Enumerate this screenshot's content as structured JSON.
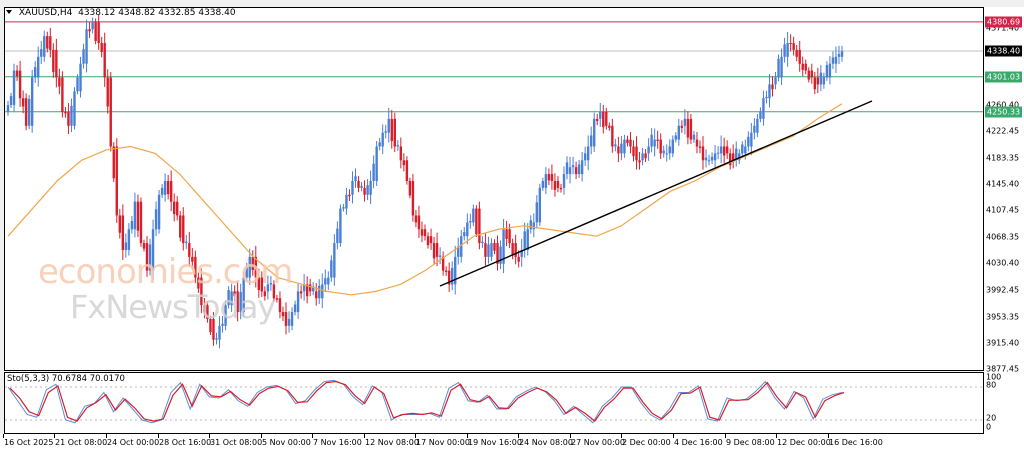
{
  "header": {
    "symbol_timeframe": "XAUUSD,H4",
    "ohlc": "4338.12 4348.82 4332.85 4338.40"
  },
  "watermark": {
    "line1": "economies.com",
    "line2": "FxNewsToday"
  },
  "price_axis": {
    "ticks": [
      "4371.40",
      "4260.40",
      "4222.45",
      "4183.35",
      "4145.40",
      "4107.45",
      "4068.35",
      "4030.40",
      "3992.45",
      "3953.35",
      "3915.40",
      "3877.45"
    ],
    "tags": [
      {
        "value": "4380.69",
        "color": "#d6224a"
      },
      {
        "value": "4338.40",
        "color": "#000000"
      },
      {
        "value": "4301.03",
        "color": "#3aa86b"
      },
      {
        "value": "4250.33",
        "color": "#3aa86b"
      }
    ]
  },
  "stochastic": {
    "title": "Sto(5,3,3) 70.6784 70.0170",
    "levels": [
      "100",
      "80",
      "20",
      "0"
    ],
    "main_color": "#5b8fd9",
    "signal_color": "#d81e2a"
  },
  "time_axis": {
    "labels": [
      "16 Oct 2025",
      "21 Oct 08:00",
      "24 Oct 00:00",
      "28 Oct 16:00",
      "31 Oct 08:00",
      "5 Nov 00:00",
      "7 Nov 16:00",
      "12 Nov 08:00",
      "17 Nov 00:00",
      "19 Nov 16:00",
      "24 Nov 08:00",
      "27 Nov 00:00",
      "2 Dec 00:00",
      "4 Dec 16:00",
      "9 Dec 08:00",
      "12 Dec 00:00",
      "16 Dec 16:00"
    ]
  },
  "chart_data": [
    {
      "type": "candlestick",
      "title": "XAUUSD,H4",
      "subtitle": "4338.12 4348.82 4332.85 4338.40",
      "xlabel": "",
      "ylabel": "",
      "ylim": [
        3877.45,
        4390
      ],
      "grid": false,
      "colors": {
        "bull": "#4a7fd6",
        "bear": "#d81e2a",
        "ma": "#f2a64a",
        "trendline": "#000000"
      },
      "horizontal_lines": [
        {
          "value": 4380.69,
          "color": "#d6224a"
        },
        {
          "value": 4338.4,
          "color": "#c0c0c0"
        },
        {
          "value": 4301.03,
          "color": "#3aa86b"
        },
        {
          "value": 4250.33,
          "color": "#3aa86b"
        }
      ],
      "trendline": {
        "from": {
          "x": "17 Nov 00:00",
          "y": 3998
        },
        "to": {
          "x": "17 Dec 08:00",
          "y": 4262
        }
      },
      "x_tick_labels": [
        "16 Oct 2025",
        "21 Oct 08:00",
        "24 Oct 00:00",
        "28 Oct 16:00",
        "31 Oct 08:00",
        "5 Nov 00:00",
        "7 Nov 16:00",
        "12 Nov 08:00",
        "17 Nov 00:00",
        "19 Nov 16:00",
        "24 Nov 08:00",
        "27 Nov 00:00",
        "2 Dec 00:00",
        "4 Dec 16:00",
        "9 Dec 08:00",
        "12 Dec 00:00",
        "16 Dec 16:00"
      ],
      "y_tick_labels": [
        "4371.40",
        "4260.40",
        "4222.45",
        "4183.35",
        "4145.40",
        "4107.45",
        "4068.35",
        "4030.40",
        "3992.45",
        "3953.35",
        "3915.40",
        "3877.45"
      ],
      "close_path": [
        4260,
        4310,
        4270,
        4230,
        4300,
        4330,
        4360,
        4340,
        4300,
        4250,
        4230,
        4280,
        4320,
        4370,
        4380,
        4350,
        4300,
        4200,
        4100,
        4050,
        4080,
        4120,
        4060,
        4020,
        4080,
        4130,
        4150,
        4120,
        4100,
        4060,
        4040,
        4010,
        3970,
        3950,
        3920,
        3940,
        3970,
        3990,
        3960,
        4010,
        4040,
        4010,
        3990,
        4000,
        3980,
        3960,
        3940,
        3960,
        3990,
        4000,
        3990,
        3980,
        4000,
        4010,
        4060,
        4110,
        4130,
        4150,
        4140,
        4130,
        4150,
        4200,
        4220,
        4240,
        4200,
        4180,
        4150,
        4100,
        4080,
        4070,
        4060,
        4040,
        4020,
        4000,
        4040,
        4070,
        4090,
        4110,
        4060,
        4040,
        4060,
        4030,
        4080,
        4060,
        4040,
        4050,
        4080,
        4090,
        4140,
        4160,
        4150,
        4140,
        4160,
        4170,
        4160,
        4180,
        4200,
        4240,
        4250,
        4230,
        4200,
        4190,
        4210,
        4200,
        4180,
        4190,
        4200,
        4210,
        4190,
        4190,
        4210,
        4230,
        4240,
        4210,
        4200,
        4180,
        4180,
        4190,
        4200,
        4190,
        4180,
        4190,
        4200,
        4220,
        4240,
        4270,
        4290,
        4300,
        4330,
        4350,
        4340,
        4320,
        4310,
        4300,
        4290,
        4300,
        4320,
        4330,
        4338
      ],
      "ma_path": [
        4070,
        4110,
        4150,
        4180,
        4195,
        4200,
        4190,
        4160,
        4120,
        4080,
        4040,
        4010,
        4000,
        3990,
        3985,
        3990,
        4000,
        4020,
        4045,
        4070,
        4080,
        4085,
        4080,
        4075,
        4070,
        4085,
        4110,
        4135,
        4150,
        4170,
        4185,
        4200,
        4215,
        4240,
        4262
      ],
      "stochastic_main": [
        80,
        55,
        30,
        25,
        75,
        85,
        20,
        15,
        45,
        50,
        70,
        35,
        60,
        40,
        20,
        15,
        20,
        70,
        88,
        40,
        85,
        62,
        60,
        75,
        55,
        45,
        70,
        80,
        83,
        75,
        50,
        55,
        75,
        90,
        92,
        85,
        62,
        48,
        82,
        70,
        20,
        30,
        30,
        30,
        32,
        25,
        78,
        88,
        55,
        52,
        65,
        40,
        40,
        62,
        72,
        80,
        72,
        55,
        30,
        45,
        30,
        15,
        45,
        60,
        80,
        80,
        52,
        30,
        20,
        40,
        70,
        70,
        82,
        22,
        18,
        60,
        55,
        58,
        72,
        90,
        60,
        40,
        72,
        60,
        22,
        58,
        66,
        70
      ],
      "stochastic_signal": [
        78,
        60,
        35,
        28,
        70,
        82,
        25,
        18,
        42,
        52,
        66,
        38,
        58,
        42,
        22,
        18,
        22,
        65,
        85,
        45,
        82,
        64,
        62,
        72,
        57,
        47,
        68,
        78,
        81,
        73,
        52,
        53,
        73,
        88,
        90,
        84,
        64,
        50,
        80,
        68,
        24,
        30,
        32,
        30,
        33,
        27,
        74,
        85,
        57,
        53,
        63,
        42,
        41,
        60,
        70,
        78,
        71,
        56,
        32,
        43,
        32,
        18,
        43,
        58,
        78,
        78,
        53,
        32,
        22,
        38,
        68,
        69,
        80,
        25,
        20,
        56,
        56,
        57,
        70,
        88,
        62,
        42,
        70,
        62,
        25,
        55,
        64,
        70
      ]
    }
  ]
}
